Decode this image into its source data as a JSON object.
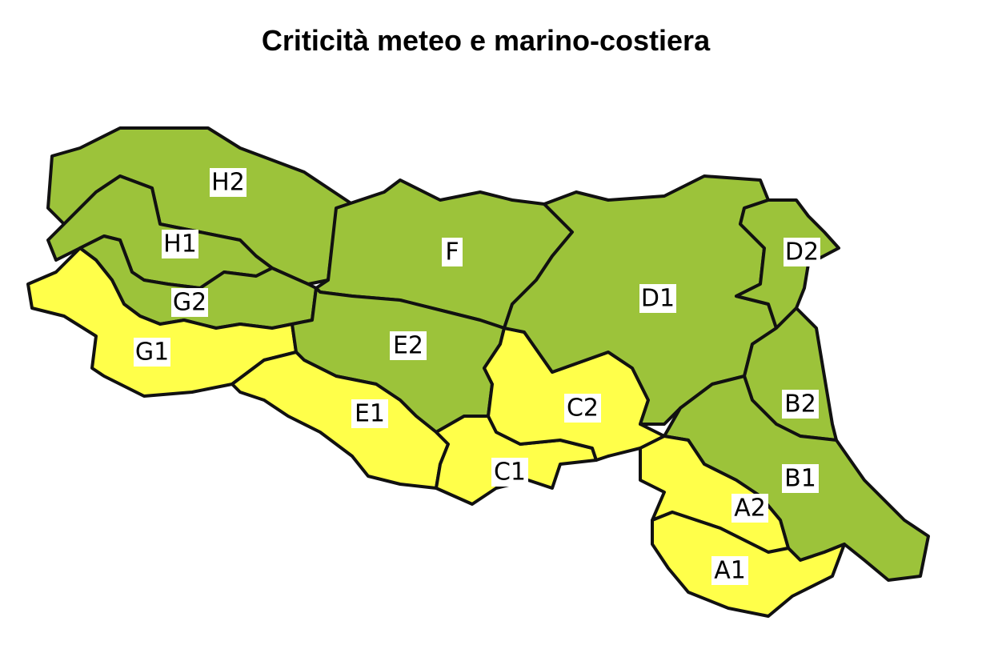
{
  "title": "Criticità meteo e marino-costiera",
  "colors": {
    "green": "#9cc33a",
    "yellow": "#ffff4a",
    "border": "#111111"
  },
  "zones": [
    {
      "label": "H2",
      "level": "green"
    },
    {
      "label": "H1",
      "level": "green"
    },
    {
      "label": "G2",
      "level": "green"
    },
    {
      "label": "G1",
      "level": "yellow"
    },
    {
      "label": "F",
      "level": "green"
    },
    {
      "label": "E2",
      "level": "green"
    },
    {
      "label": "E1",
      "level": "yellow"
    },
    {
      "label": "C1",
      "level": "yellow"
    },
    {
      "label": "C2",
      "level": "yellow"
    },
    {
      "label": "D1",
      "level": "green"
    },
    {
      "label": "D2",
      "level": "green"
    },
    {
      "label": "B2",
      "level": "green"
    },
    {
      "label": "B1",
      "level": "green"
    },
    {
      "label": "A2",
      "level": "yellow"
    },
    {
      "label": "A1",
      "level": "yellow"
    }
  ]
}
